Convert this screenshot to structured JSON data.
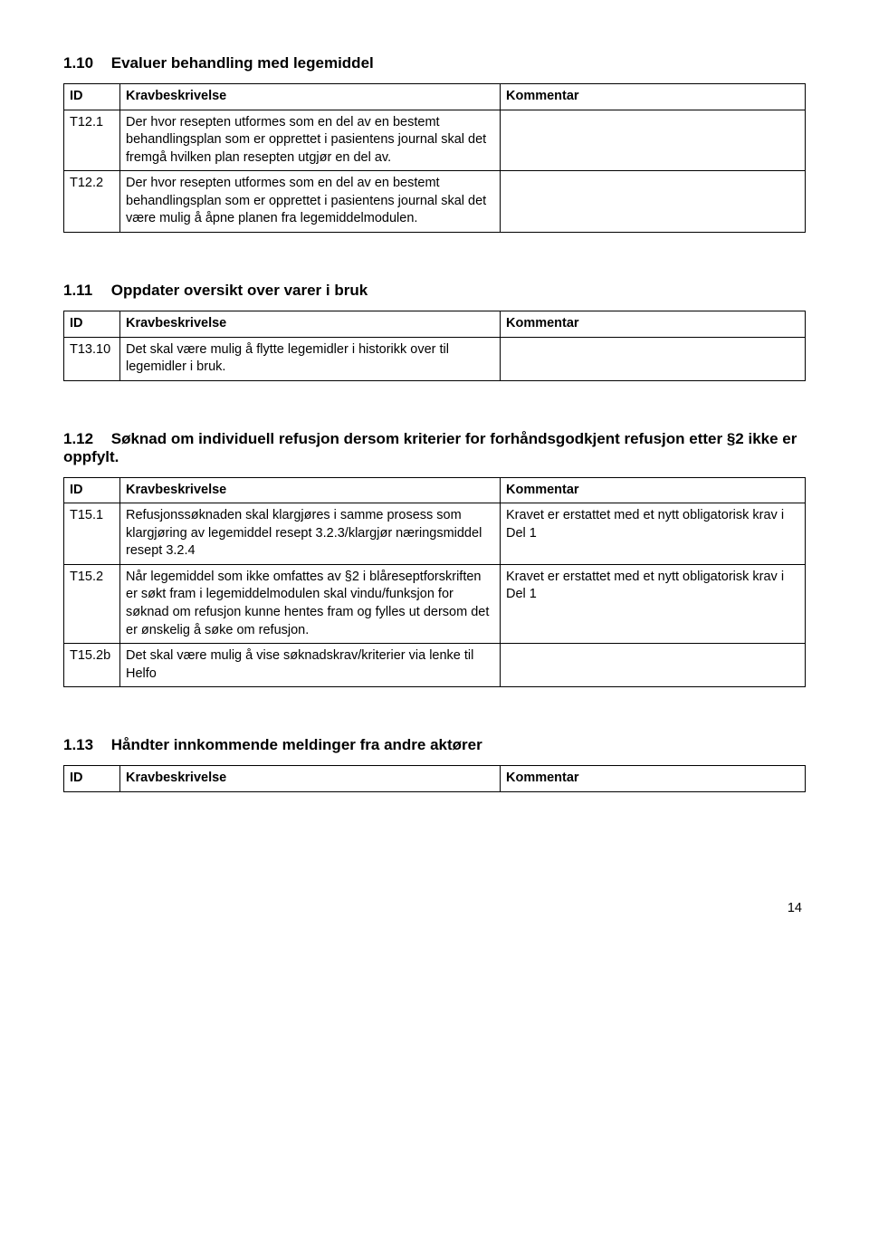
{
  "sections": {
    "s110": {
      "number": "1.10",
      "title": "Evaluer behandling med legemiddel",
      "header": {
        "id": "ID",
        "desc": "Kravbeskrivelse",
        "comm": "Kommentar"
      },
      "rows": [
        {
          "id": "T12.1",
          "desc": "Der hvor resepten utformes som en del av en bestemt behandlingsplan som er opprettet i pasientens journal skal det fremgå hvilken plan resepten utgjør en del av.",
          "comm": ""
        },
        {
          "id": "T12.2",
          "desc": "Der hvor resepten utformes som en del av en bestemt behandlingsplan som er opprettet i pasientens journal skal det være mulig å åpne planen fra legemiddelmodulen.",
          "comm": ""
        }
      ]
    },
    "s111": {
      "number": "1.11",
      "title": "Oppdater oversikt over varer i bruk",
      "header": {
        "id": "ID",
        "desc": "Kravbeskrivelse",
        "comm": "Kommentar"
      },
      "rows": [
        {
          "id": "T13.10",
          "desc": "Det skal være mulig å flytte legemidler i historikk over til legemidler i bruk.",
          "comm": ""
        }
      ]
    },
    "s112": {
      "number": "1.12",
      "title": "Søknad om individuell refusjon dersom kriterier for forhåndsgodkjent refusjon etter §2 ikke er oppfylt.",
      "header": {
        "id": "ID",
        "desc": "Kravbeskrivelse",
        "comm": "Kommentar"
      },
      "rows": [
        {
          "id": "T15.1",
          "desc": "Refusjonssøknaden skal klargjøres i samme prosess som klargjøring av legemiddel resept 3.2.3/klargjør næringsmiddel resept 3.2.4",
          "comm": "Kravet er erstattet med et nytt obligatorisk krav i Del 1"
        },
        {
          "id": "T15.2",
          "desc": "Når legemiddel som ikke omfattes av §2 i blåreseptforskriften er søkt fram i legemiddelmodulen skal vindu/funksjon for søknad om refusjon kunne hentes fram og fylles ut dersom det er ønskelig å søke om refusjon.",
          "comm": "Kravet er erstattet med et nytt obligatorisk krav i Del 1"
        },
        {
          "id": "T15.2b",
          "desc": "Det skal være mulig å vise søknadskrav/kriterier via lenke til Helfo",
          "comm": ""
        }
      ]
    },
    "s113": {
      "number": "1.13",
      "title": "Håndter innkommende meldinger fra andre aktører",
      "header": {
        "id": "ID",
        "desc": "Kravbeskrivelse",
        "comm": "Kommentar"
      },
      "rows": []
    }
  },
  "pageNumber": "14"
}
